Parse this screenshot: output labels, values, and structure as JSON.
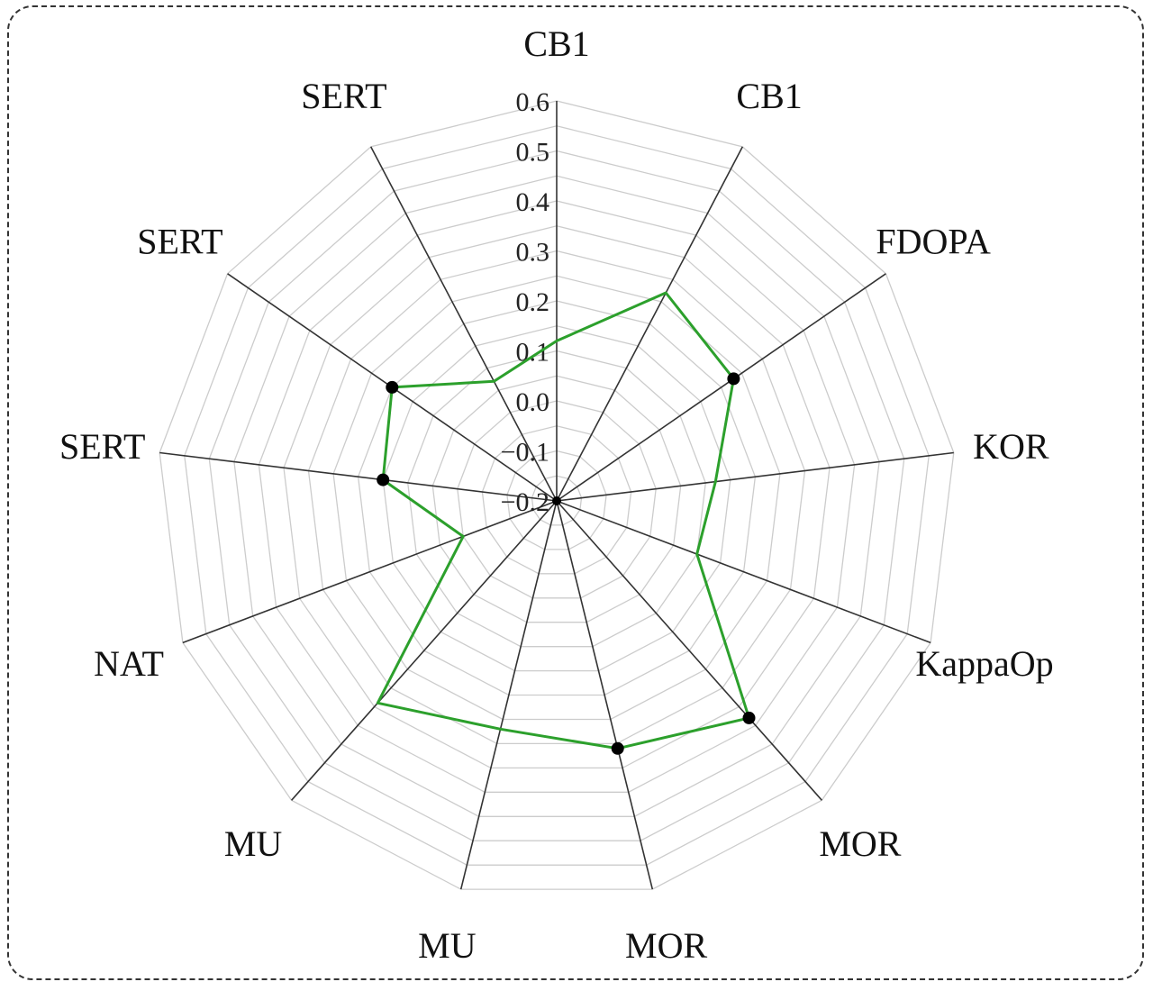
{
  "chart_data": {
    "type": "radar",
    "axes": [
      "CB1",
      "CB1",
      "FDOPA",
      "KOR",
      "KappaOp",
      "MOR",
      "MOR",
      "MU",
      "MU",
      "NAT",
      "SERT",
      "SERT",
      "SERT"
    ],
    "radial_ticks": [
      "−0.2",
      "−0.1",
      "0.0",
      "0.1",
      "0.2",
      "0.3",
      "0.4",
      "0.5",
      "0.6"
    ],
    "rlim": [
      -0.2,
      0.6
    ],
    "grid": true,
    "series": [
      {
        "color": "#2ca02c",
        "values": [
          0.12,
          0.27,
          0.23,
          0.12,
          0.1,
          0.38,
          0.31,
          0.27,
          0.34,
          0.0,
          0.15,
          0.2,
          0.07
        ],
        "marked": [
          false,
          false,
          true,
          false,
          false,
          true,
          true,
          false,
          false,
          false,
          true,
          true,
          false
        ]
      }
    ],
    "marker_color": "#000000",
    "spoke_color": "#333333",
    "grid_color": "#cccccc"
  }
}
